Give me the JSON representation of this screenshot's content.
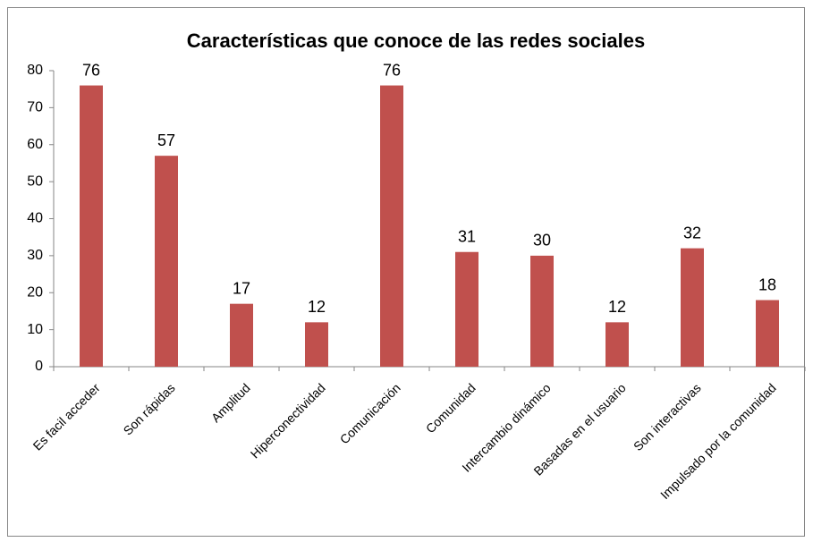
{
  "chart_data": {
    "type": "bar",
    "title": "Características que conoce de las redes sociales",
    "categories": [
      "Es facil acceder",
      "Son rápidas",
      "Amplitud",
      "Hiperconectividad",
      "Comunicación",
      "Comunidad",
      "Intercambio dinámico",
      "Basadas en el usuario",
      "Son interactivas",
      "Impulsado por la comunidad"
    ],
    "values": [
      76,
      57,
      17,
      12,
      76,
      31,
      30,
      12,
      32,
      18
    ],
    "color": "#c0504d",
    "ylim": [
      0,
      80
    ],
    "yticks": [
      0,
      10,
      20,
      30,
      40,
      50,
      60,
      70,
      80
    ],
    "grid": false
  }
}
